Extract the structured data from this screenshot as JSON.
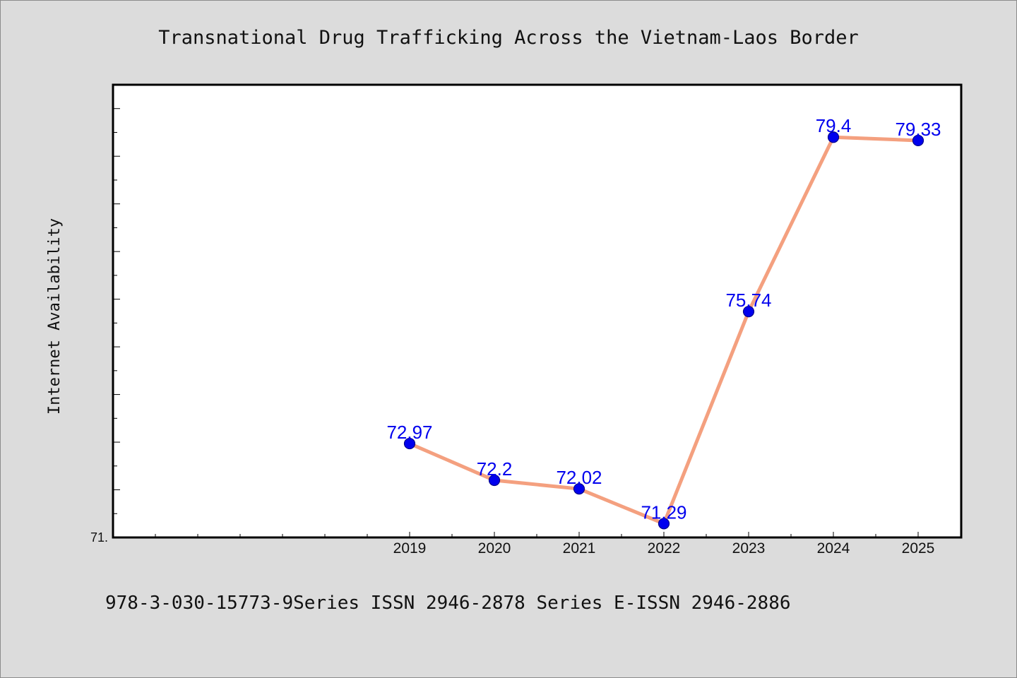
{
  "chart_data": {
    "type": "line",
    "title": "Transnational Drug Trafficking Across the Vietnam-Laos Border",
    "xlabel": "",
    "ylabel": "Internet Availability",
    "categories": [
      "2019",
      "2020",
      "2021",
      "2022",
      "2023",
      "2024",
      "2025"
    ],
    "series": [
      {
        "values": [
          72.97,
          72.2,
          72.02,
          71.29,
          75.74,
          79.4,
          79.33
        ]
      }
    ],
    "data_labels": [
      "72.97",
      "72.2",
      "72.02",
      "71.29",
      "75.74",
      "79.4",
      "79.33"
    ],
    "ytick_labels": [
      "71."
    ],
    "ylim": [
      71.0,
      80.5
    ],
    "grid": false,
    "colors": {
      "line": "#f4a07f",
      "marker": "#0000ee",
      "label": "#0000ee",
      "axes": "#000000"
    }
  },
  "footer": {
    "text": "978-3-030-15773-9Series ISSN 2946-2878 Series E-ISSN 2946-2886"
  }
}
